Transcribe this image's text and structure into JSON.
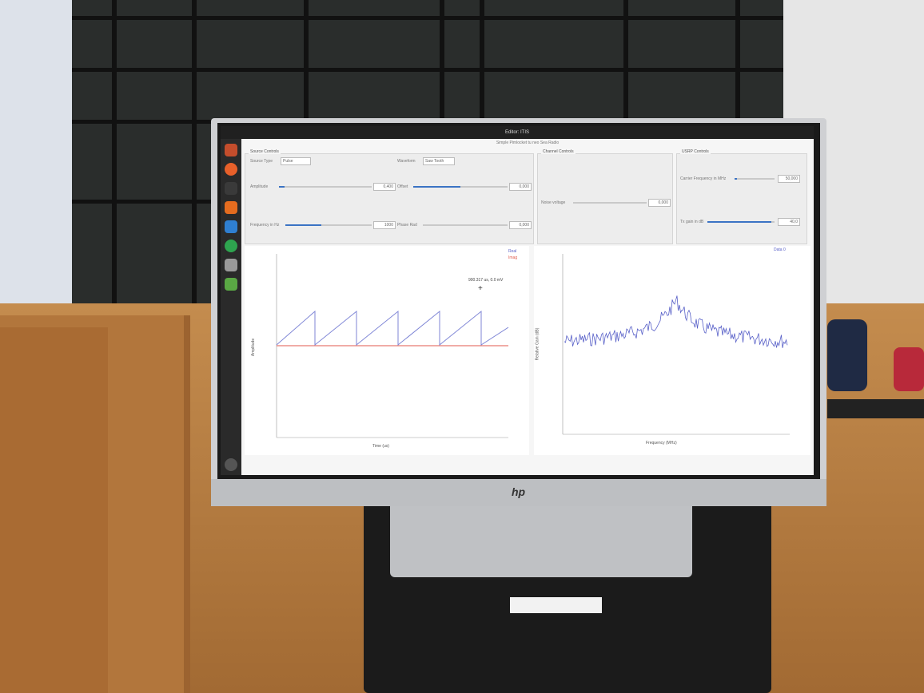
{
  "monitor": {
    "brand": "hp"
  },
  "topbar": {
    "title": "Editor: ITIS"
  },
  "app": {
    "title": "Simple Pimlocket tu neo Sea Radio",
    "source_controls": {
      "tab": "Source Controls",
      "source_type_label": "Source Type",
      "source_type_value": "Pulse",
      "waveform_label": "Waveform",
      "waveform_value": "Saw Tooth",
      "amplitude_label": "Amplitude",
      "amplitude_value": "0,400",
      "amplitude_level": 0.06,
      "offset_label": "Offset",
      "offset_value": "0,000",
      "offset_level": 0.5,
      "frequency_label": "Frequency in Hz",
      "frequency_value": "1000",
      "frequency_level": 0.42,
      "phase_label": "Phase Rad",
      "phase_value": "0,000",
      "phase_level": 0.0
    },
    "channel_controls": {
      "tab": "Channel Controls",
      "noise_label": "Noise voltage",
      "noise_value": "0,000",
      "noise_level": 0.0
    },
    "usrp_controls": {
      "tab": "USRP Controls",
      "carrier_label": "Carrier Frequency in MHz",
      "carrier_value": "50,000",
      "carrier_level": 0.05,
      "tx_gain_label": "Tx gain in dB",
      "tx_gain_value": "40,0",
      "tx_gain_level": 0.95
    },
    "time_plot": {
      "xlabel": "Time (us)",
      "ylabel": "Amplitude",
      "legend": [
        "Real",
        "Imag"
      ],
      "cursor_readout": "900.317 us, 0.0 mV"
    },
    "freq_plot": {
      "xlabel": "Frequency (MHz)",
      "ylabel": "Relative Gain (dB)",
      "legend": [
        "Data 0"
      ]
    }
  },
  "colors": {
    "real": "#7f86d6",
    "imag": "#e05a4c",
    "spectrum": "#5860c8",
    "accent": "#3b73c4"
  }
}
